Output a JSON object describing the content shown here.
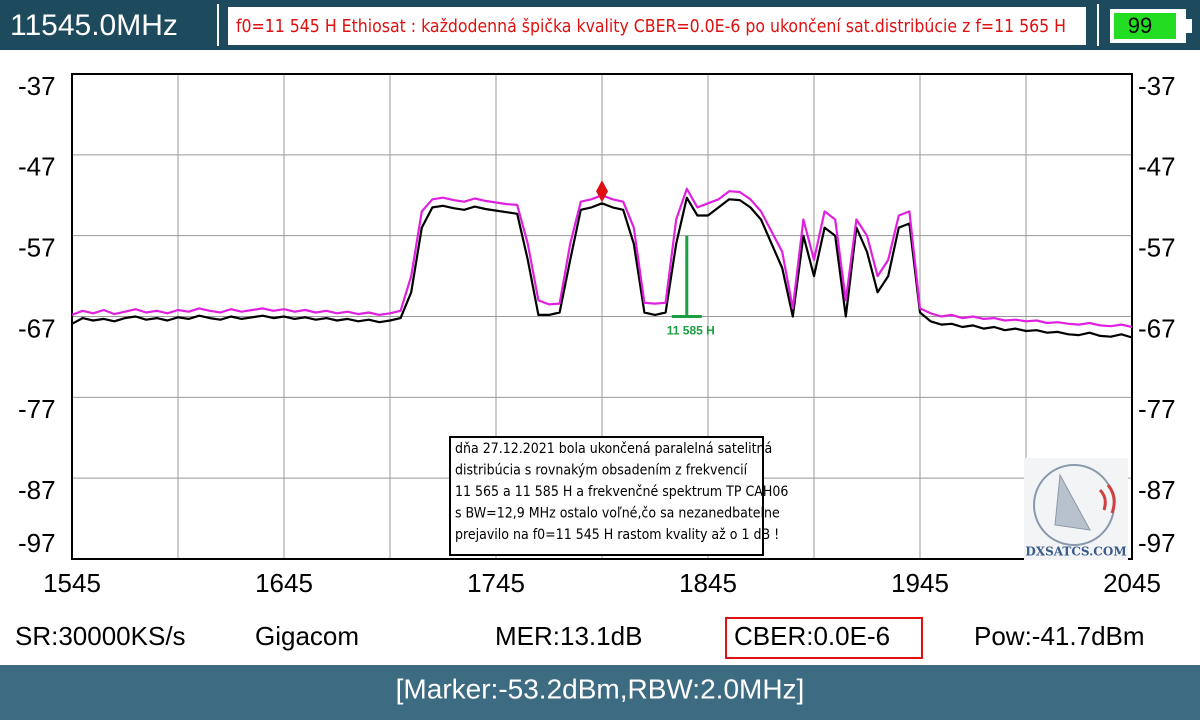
{
  "header": {
    "frequency": "11545.0MHz",
    "message": "f0=11 545 H Ethiosat : každodenná špička kvality CBER=0.0E-6 po ukončení sat.distribúcie z f=11 565 H",
    "battery": "99"
  },
  "chart_data": {
    "type": "line",
    "x": [
      1545,
      1550,
      1555,
      1560,
      1565,
      1570,
      1575,
      1580,
      1585,
      1590,
      1595,
      1600,
      1605,
      1610,
      1615,
      1620,
      1625,
      1630,
      1635,
      1640,
      1645,
      1650,
      1655,
      1660,
      1665,
      1670,
      1675,
      1680,
      1685,
      1690,
      1695,
      1700,
      1705,
      1710,
      1715,
      1720,
      1725,
      1730,
      1735,
      1740,
      1745,
      1750,
      1755,
      1760,
      1765,
      1770,
      1775,
      1780,
      1785,
      1790,
      1795,
      1800,
      1805,
      1810,
      1815,
      1820,
      1825,
      1830,
      1835,
      1840,
      1845,
      1850,
      1855,
      1860,
      1865,
      1870,
      1875,
      1880,
      1885,
      1890,
      1895,
      1900,
      1905,
      1910,
      1915,
      1920,
      1925,
      1930,
      1935,
      1940,
      1945,
      1950,
      1955,
      1960,
      1965,
      1970,
      1975,
      1980,
      1985,
      1990,
      1995,
      2000,
      2005,
      2010,
      2015,
      2020,
      2025,
      2030,
      2035,
      2040,
      2045
    ],
    "series": [
      {
        "color": "#000000",
        "values": [
          -67.9,
          -67.2,
          -67.5,
          -67.3,
          -67.6,
          -67.2,
          -67.0,
          -67.4,
          -67.2,
          -67.5,
          -67.1,
          -67.3,
          -66.9,
          -67.2,
          -67.4,
          -67.0,
          -67.3,
          -67.1,
          -66.9,
          -67.2,
          -67.0,
          -67.3,
          -67.1,
          -67.4,
          -67.2,
          -67.5,
          -67.3,
          -67.6,
          -67.4,
          -67.7,
          -67.5,
          -67.2,
          -64,
          -56,
          -53.5,
          -53.3,
          -53.6,
          -53.8,
          -53.4,
          -53.7,
          -53.9,
          -54.1,
          -54.3,
          -60,
          -66.8,
          -66.8,
          -66.5,
          -60,
          -53.8,
          -53.5,
          -53.0,
          -53.5,
          -53.8,
          -58,
          -66.5,
          -66.8,
          -66.5,
          -58,
          -52.3,
          -54.5,
          -54.5,
          -53.5,
          -52.5,
          -52.6,
          -53.5,
          -55,
          -58,
          -61,
          -67,
          -57,
          -62,
          -56,
          -57,
          -67,
          -56,
          -59,
          -64,
          -62,
          -56,
          -55.5,
          -66.5,
          -67.6,
          -68.0,
          -67.9,
          -68.3,
          -68.1,
          -68.5,
          -68.3,
          -68.7,
          -68.5,
          -68.8,
          -68.7,
          -69.0,
          -68.9,
          -69.2,
          -69.3,
          -69.0,
          -69.4,
          -69.5,
          -69.2,
          -69.6
        ]
      },
      {
        "color": "#e020e0",
        "values": [
          -66.8,
          -66.3,
          -66.6,
          -66.2,
          -66.7,
          -66.4,
          -66.1,
          -66.5,
          -66.3,
          -66.6,
          -66.2,
          -66.4,
          -66.0,
          -66.3,
          -66.5,
          -66.1,
          -66.4,
          -66.2,
          -66.0,
          -66.3,
          -66.1,
          -66.4,
          -66.2,
          -66.5,
          -66.3,
          -66.6,
          -66.4,
          -66.7,
          -66.5,
          -66.8,
          -66.6,
          -66.3,
          -62,
          -54,
          -52.5,
          -52.3,
          -52.6,
          -52.8,
          -52.4,
          -52.7,
          -52.9,
          -53.1,
          -53.2,
          -58,
          -65,
          -65.5,
          -65.4,
          -58,
          -52.8,
          -52.5,
          -52.0,
          -52.5,
          -52.8,
          -56,
          -65.3,
          -65.4,
          -65.3,
          -55,
          -51.2,
          -53.5,
          -53,
          -52.5,
          -51.5,
          -51.6,
          -52.5,
          -54,
          -56.5,
          -59,
          -66,
          -55,
          -60,
          -54,
          -55,
          -65,
          -55,
          -57,
          -62,
          -60,
          -54.5,
          -54,
          -66,
          -66.6,
          -67.0,
          -66.8,
          -67.2,
          -67.0,
          -67.3,
          -67.2,
          -67.5,
          -67.4,
          -67.6,
          -67.5,
          -67.8,
          -67.7,
          -67.9,
          -68.0,
          -67.8,
          -68.1,
          -68.2,
          -68.0,
          -68.3
        ]
      }
    ],
    "xlim": [
      1545,
      2045
    ],
    "xticks": [
      1545,
      {
        "value": 1595,
        "label": null
      },
      1645,
      {
        "value": 1695,
        "label": null
      },
      1745,
      {
        "value": 1795,
        "label": null
      },
      1845,
      {
        "value": 1895,
        "label": null
      },
      1945,
      {
        "value": 1995,
        "label": null
      },
      2045
    ],
    "ylim": [
      -97,
      -37
    ],
    "yticks": [
      -97,
      -87,
      -77,
      -67,
      -57,
      -47,
      -37
    ],
    "grid": true,
    "marker": {
      "x": 1795,
      "y": -51.5,
      "color": "#e01010"
    },
    "bw_marker": {
      "x": 1835,
      "low": -67,
      "high": -57,
      "label": "11 585 H",
      "color": "#1aa040"
    },
    "note": [
      "dňa 27.12.2021 bola ukončená paralelná satelitná",
      "distribúcia  s rovnakým obsadením z frekvencií",
      "11 565 a 11 585 H a frekvenčné spektrum TP CAH06",
      "s BW=12,9 MHz ostalo voľné,čo sa nezanedbatelne",
      "prejavilo na f0=11 545 H rastom kvality až o 1 dB !"
    ],
    "logo": "DXSATCS.COM"
  },
  "status": {
    "sr": "SR:30000KS/s",
    "provider": "Gigacom",
    "mer": "MER:13.1dB",
    "cber": "CBER:0.0E-6",
    "pow": "Pow:-41.7dBm",
    "marker": "[Marker:-53.2dBm,RBW:2.0MHz]"
  }
}
